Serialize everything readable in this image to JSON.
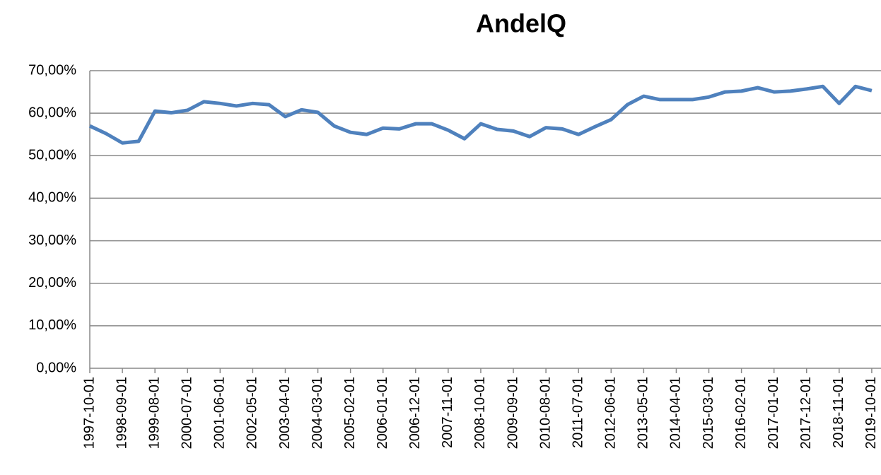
{
  "chart_data": {
    "type": "line",
    "title": "AndelQ",
    "categories": [
      "1997-10-01",
      null,
      "1998-09-01",
      null,
      "1999-08-01",
      null,
      "2000-07-01",
      null,
      "2001-06-01",
      null,
      "2002-05-01",
      null,
      "2003-04-01",
      null,
      "2004-03-01",
      null,
      "2005-02-01",
      null,
      "2006-01-01",
      null,
      "2006-12-01",
      null,
      "2007-11-01",
      null,
      "2008-10-01",
      null,
      "2009-09-01",
      null,
      "2010-08-01",
      null,
      "2011-07-01",
      null,
      "2012-06-01",
      null,
      "2013-05-01",
      null,
      "2014-04-01",
      null,
      "2015-03-01",
      null,
      "2016-02-01",
      null,
      "2017-01-01",
      null,
      "2017-12-01",
      null,
      "2018-11-01",
      null,
      "2019-10-01"
    ],
    "series": [
      {
        "name": "AndelQ",
        "color": "#4f81bd",
        "values": [
          57,
          55.2,
          53,
          53.4,
          60.5,
          60.1,
          60.7,
          62.7,
          62.3,
          61.7,
          62.3,
          62,
          59.2,
          60.8,
          60.2,
          57,
          55.5,
          55,
          56.5,
          56.3,
          57.5,
          57.5,
          56,
          54,
          57.5,
          56.2,
          55.8,
          54.5,
          56.6,
          56.3,
          55,
          56.8,
          58.5,
          62,
          64,
          63.2,
          63.2,
          63.2,
          63.8,
          65,
          65.2,
          66,
          65,
          65.2,
          65.7,
          66.3,
          62.3,
          66.3,
          65.3
        ]
      }
    ],
    "ylim": [
      0,
      70
    ],
    "yticks": [
      {
        "value": 0,
        "label": "0,00%"
      },
      {
        "value": 10,
        "label": "10,00%"
      },
      {
        "value": 20,
        "label": "20,00%"
      },
      {
        "value": 30,
        "label": "30,00%"
      },
      {
        "value": 40,
        "label": "40,00%"
      },
      {
        "value": 50,
        "label": "50,00%"
      },
      {
        "value": 60,
        "label": "60,00%"
      },
      {
        "value": 70,
        "label": "70,00%"
      }
    ],
    "grid": true
  }
}
